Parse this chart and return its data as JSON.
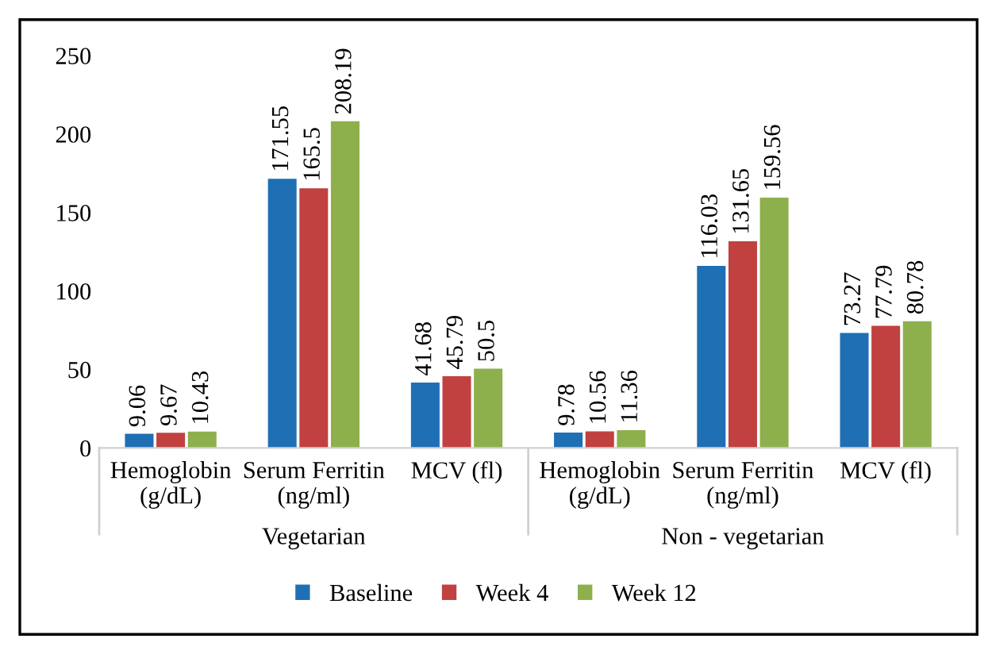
{
  "chart_data": {
    "type": "bar",
    "categories": [
      "Hemoglobin\n(g/dL)",
      "Serum Ferritin\n(ng/ml)",
      "MCV (fl)",
      "Hemoglobin\n(g/dL)",
      "Serum Ferritin\n(ng/ml)",
      "MCV (fl)"
    ],
    "series": [
      {
        "name": "Baseline",
        "color": "#1f6fb4",
        "values": [
          9.06,
          171.55,
          41.68,
          9.78,
          116.03,
          73.27
        ]
      },
      {
        "name": "Week 4",
        "color": "#c0413f",
        "values": [
          9.67,
          165.5,
          45.79,
          10.56,
          131.65,
          77.79
        ]
      },
      {
        "name": "Week 12",
        "color": "#8db04c",
        "values": [
          10.43,
          208.19,
          50.5,
          11.36,
          159.56,
          80.78
        ]
      }
    ],
    "annotations": [
      "Vegetarian",
      "Non - vegetarian"
    ],
    "ylim": [
      0,
      250
    ],
    "yticks": [
      0,
      50,
      100,
      150,
      200,
      250
    ],
    "data_labels": true,
    "grid": false,
    "legend": "bottom"
  }
}
